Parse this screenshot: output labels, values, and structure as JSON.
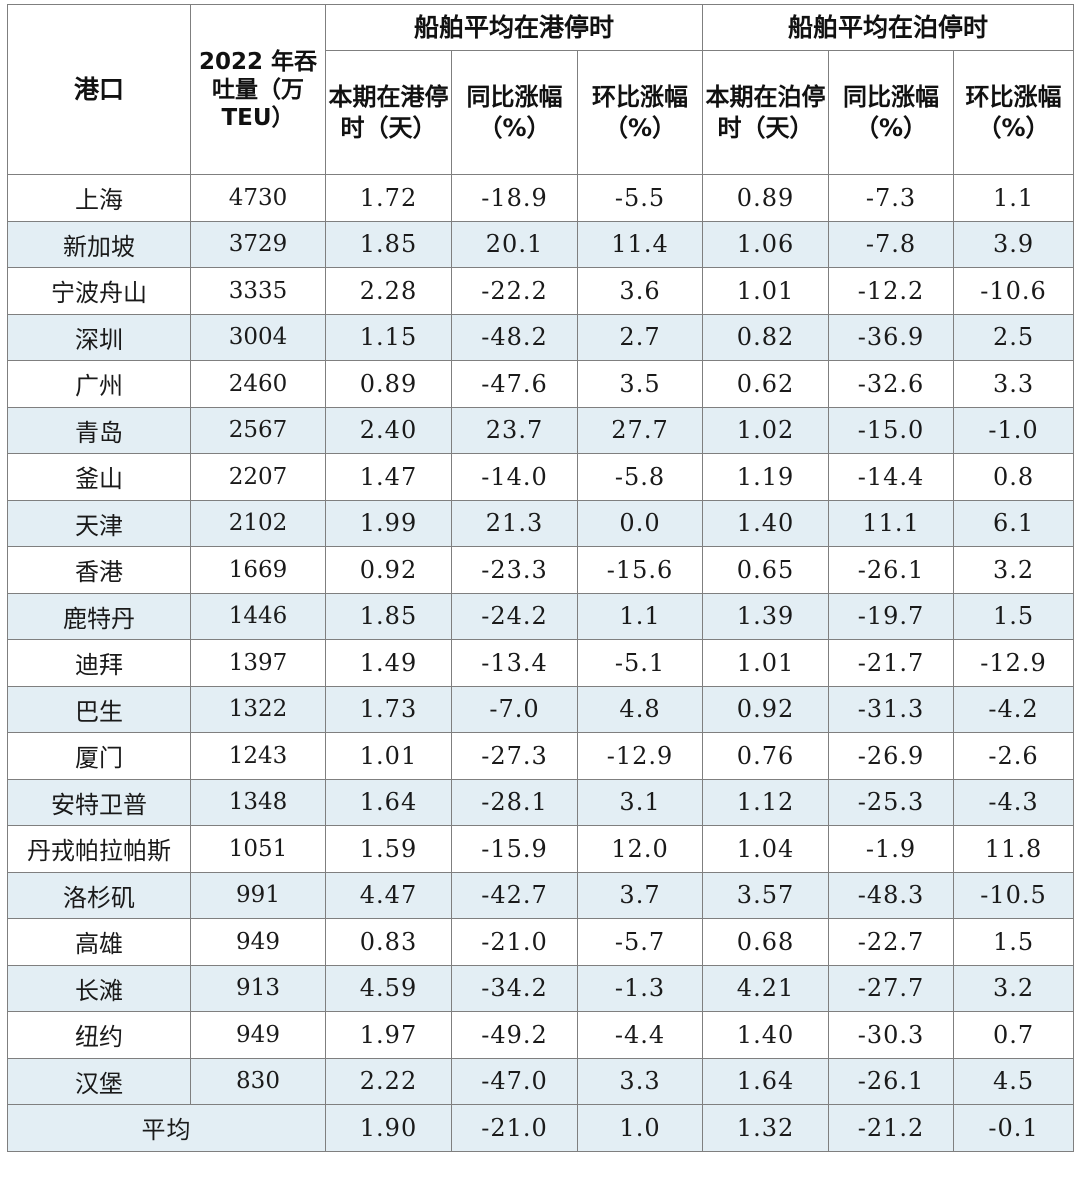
{
  "header": {
    "port": "港口",
    "throughput": "2022 年吞吐量（万TEU）",
    "group_port": "船舶平均在港停时",
    "group_berth": "船舶平均在泊停时",
    "port_time": "本期在港停时（天）",
    "port_yoy": "同比涨幅（%）",
    "port_mom": "环比涨幅（%）",
    "berth_time": "本期在泊停时（天）",
    "berth_yoy": "同比涨幅（%）",
    "berth_mom": "环比涨幅（%）"
  },
  "rows": [
    {
      "port": "上海",
      "throughput": "4730",
      "port_time": "1.72",
      "port_yoy": "-18.9",
      "port_mom": "-5.5",
      "berth_time": "0.89",
      "berth_yoy": "-7.3",
      "berth_mom": "1.1"
    },
    {
      "port": "新加坡",
      "throughput": "3729",
      "port_time": "1.85",
      "port_yoy": "20.1",
      "port_mom": "11.4",
      "berth_time": "1.06",
      "berth_yoy": "-7.8",
      "berth_mom": "3.9"
    },
    {
      "port": "宁波舟山",
      "throughput": "3335",
      "port_time": "2.28",
      "port_yoy": "-22.2",
      "port_mom": "3.6",
      "berth_time": "1.01",
      "berth_yoy": "-12.2",
      "berth_mom": "-10.6"
    },
    {
      "port": "深圳",
      "throughput": "3004",
      "port_time": "1.15",
      "port_yoy": "-48.2",
      "port_mom": "2.7",
      "berth_time": "0.82",
      "berth_yoy": "-36.9",
      "berth_mom": "2.5"
    },
    {
      "port": "广州",
      "throughput": "2460",
      "port_time": "0.89",
      "port_yoy": "-47.6",
      "port_mom": "3.5",
      "berth_time": "0.62",
      "berth_yoy": "-32.6",
      "berth_mom": "3.3"
    },
    {
      "port": "青岛",
      "throughput": "2567",
      "port_time": "2.40",
      "port_yoy": "23.7",
      "port_mom": "27.7",
      "berth_time": "1.02",
      "berth_yoy": "-15.0",
      "berth_mom": "-1.0"
    },
    {
      "port": "釜山",
      "throughput": "2207",
      "port_time": "1.47",
      "port_yoy": "-14.0",
      "port_mom": "-5.8",
      "berth_time": "1.19",
      "berth_yoy": "-14.4",
      "berth_mom": "0.8"
    },
    {
      "port": "天津",
      "throughput": "2102",
      "port_time": "1.99",
      "port_yoy": "21.3",
      "port_mom": "0.0",
      "berth_time": "1.40",
      "berth_yoy": "11.1",
      "berth_mom": "6.1"
    },
    {
      "port": "香港",
      "throughput": "1669",
      "port_time": "0.92",
      "port_yoy": "-23.3",
      "port_mom": "-15.6",
      "berth_time": "0.65",
      "berth_yoy": "-26.1",
      "berth_mom": "3.2"
    },
    {
      "port": "鹿特丹",
      "throughput": "1446",
      "port_time": "1.85",
      "port_yoy": "-24.2",
      "port_mom": "1.1",
      "berth_time": "1.39",
      "berth_yoy": "-19.7",
      "berth_mom": "1.5"
    },
    {
      "port": "迪拜",
      "throughput": "1397",
      "port_time": "1.49",
      "port_yoy": "-13.4",
      "port_mom": "-5.1",
      "berth_time": "1.01",
      "berth_yoy": "-21.7",
      "berth_mom": "-12.9"
    },
    {
      "port": "巴生",
      "throughput": "1322",
      "port_time": "1.73",
      "port_yoy": "-7.0",
      "port_mom": "4.8",
      "berth_time": "0.92",
      "berth_yoy": "-31.3",
      "berth_mom": "-4.2"
    },
    {
      "port": "厦门",
      "throughput": "1243",
      "port_time": "1.01",
      "port_yoy": "-27.3",
      "port_mom": "-12.9",
      "berth_time": "0.76",
      "berth_yoy": "-26.9",
      "berth_mom": "-2.6"
    },
    {
      "port": "安特卫普",
      "throughput": "1348",
      "port_time": "1.64",
      "port_yoy": "-28.1",
      "port_mom": "3.1",
      "berth_time": "1.12",
      "berth_yoy": "-25.3",
      "berth_mom": "-4.3"
    },
    {
      "port": "丹戎帕拉帕斯",
      "throughput": "1051",
      "port_time": "1.59",
      "port_yoy": "-15.9",
      "port_mom": "12.0",
      "berth_time": "1.04",
      "berth_yoy": "-1.9",
      "berth_mom": "11.8"
    },
    {
      "port": "洛杉矶",
      "throughput": "991",
      "port_time": "4.47",
      "port_yoy": "-42.7",
      "port_mom": "3.7",
      "berth_time": "3.57",
      "berth_yoy": "-48.3",
      "berth_mom": "-10.5"
    },
    {
      "port": "高雄",
      "throughput": "949",
      "port_time": "0.83",
      "port_yoy": "-21.0",
      "port_mom": "-5.7",
      "berth_time": "0.68",
      "berth_yoy": "-22.7",
      "berth_mom": "1.5"
    },
    {
      "port": "长滩",
      "throughput": "913",
      "port_time": "4.59",
      "port_yoy": "-34.2",
      "port_mom": "-1.3",
      "berth_time": "4.21",
      "berth_yoy": "-27.7",
      "berth_mom": "3.2"
    },
    {
      "port": "纽约",
      "throughput": "949",
      "port_time": "1.97",
      "port_yoy": "-49.2",
      "port_mom": "-4.4",
      "berth_time": "1.40",
      "berth_yoy": "-30.3",
      "berth_mom": "0.7"
    },
    {
      "port": "汉堡",
      "throughput": "830",
      "port_time": "2.22",
      "port_yoy": "-47.0",
      "port_mom": "3.3",
      "berth_time": "1.64",
      "berth_yoy": "-26.1",
      "berth_mom": "4.5"
    }
  ],
  "average": {
    "label": "平均",
    "port_time": "1.90",
    "port_yoy": "-21.0",
    "port_mom": "1.0",
    "berth_time": "1.32",
    "berth_yoy": "-21.2",
    "berth_mom": "-0.1"
  },
  "colors": {
    "shade": "#e3eef4",
    "border": "#7f7f7f"
  }
}
